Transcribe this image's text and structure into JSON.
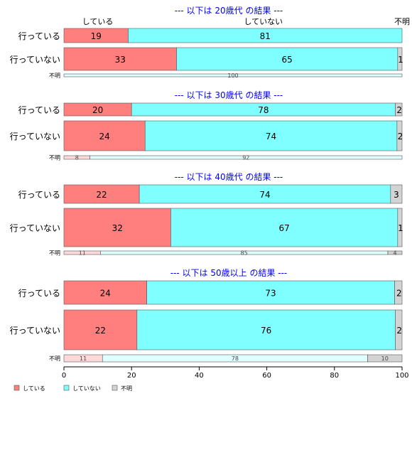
{
  "chart_data": {
    "type": "bar",
    "orientation": "horizontal",
    "stacked": true,
    "xlim": [
      0,
      100
    ],
    "x_ticks": [
      "0",
      "20",
      "40",
      "60",
      "80",
      "100"
    ],
    "top_column_labels": [
      "している",
      "していない",
      "不明"
    ],
    "legend": {
      "placement": "bottom-left",
      "items": [
        {
          "label": "している",
          "color": "#FF7F7F"
        },
        {
          "label": "していない",
          "color": "#7FFFFF"
        },
        {
          "label": "不明",
          "color": "#D3D3D3"
        }
      ]
    },
    "segment_names": [
      "している",
      "していない",
      "不明"
    ],
    "panels": [
      {
        "title": "--- 以下は 20歳代 の結果 ---",
        "rows": [
          {
            "label": "行っている",
            "values": [
              19,
              81,
              0
            ],
            "labels": [
              "19",
              "81",
              ""
            ]
          },
          {
            "label": "行っていない",
            "values": [
              33.3,
              65.4,
              1.3
            ],
            "labels": [
              "33",
              "65",
              "1"
            ]
          },
          {
            "label": "不明",
            "values": [
              0,
              100,
              0
            ],
            "labels": [
              "",
              "100",
              ""
            ]
          }
        ]
      },
      {
        "title": "--- 以下は 30歳代 の結果 ---",
        "rows": [
          {
            "label": "行っている",
            "values": [
              20,
              78,
              2
            ],
            "labels": [
              "20",
              "78",
              "2"
            ]
          },
          {
            "label": "行っていない",
            "values": [
              24,
              74.5,
              1.5
            ],
            "labels": [
              "24",
              "74",
              "2"
            ]
          },
          {
            "label": "不明",
            "values": [
              7.7,
              92.3,
              0
            ],
            "labels": [
              "8",
              "92",
              ""
            ]
          }
        ]
      },
      {
        "title": "--- 以下は 40歳代 の結果 ---",
        "rows": [
          {
            "label": "行っている",
            "values": [
              22.3,
              74.3,
              3.4
            ],
            "labels": [
              "22",
              "74",
              "3"
            ]
          },
          {
            "label": "行っていない",
            "values": [
              31.6,
              67.1,
              1.3
            ],
            "labels": [
              "32",
              "67",
              "1"
            ]
          },
          {
            "label": "不明",
            "values": [
              10.8,
              85,
              4.2
            ],
            "labels": [
              "11",
              "85",
              "4"
            ]
          }
        ]
      },
      {
        "title": "--- 以下は 50歳以上 の結果 ---",
        "rows": [
          {
            "label": "行っている",
            "values": [
              24.5,
              73.3,
              2.2
            ],
            "labels": [
              "24",
              "73",
              "2"
            ]
          },
          {
            "label": "行っていない",
            "values": [
              21.6,
              76.4,
              2
            ],
            "labels": [
              "22",
              "76",
              "2"
            ]
          },
          {
            "label": "不明",
            "values": [
              11.4,
              78.4,
              10.2
            ],
            "labels": [
              "11",
              "78",
              "10"
            ]
          }
        ]
      }
    ]
  },
  "colors": {
    "title": "#0000FF",
    "segments": [
      "#FF7F7F",
      "#7FFFFF",
      "#D3D3D3"
    ],
    "small_segments": [
      "#FFD9D9",
      "#E0FFFF",
      "#D3D3D3"
    ]
  }
}
